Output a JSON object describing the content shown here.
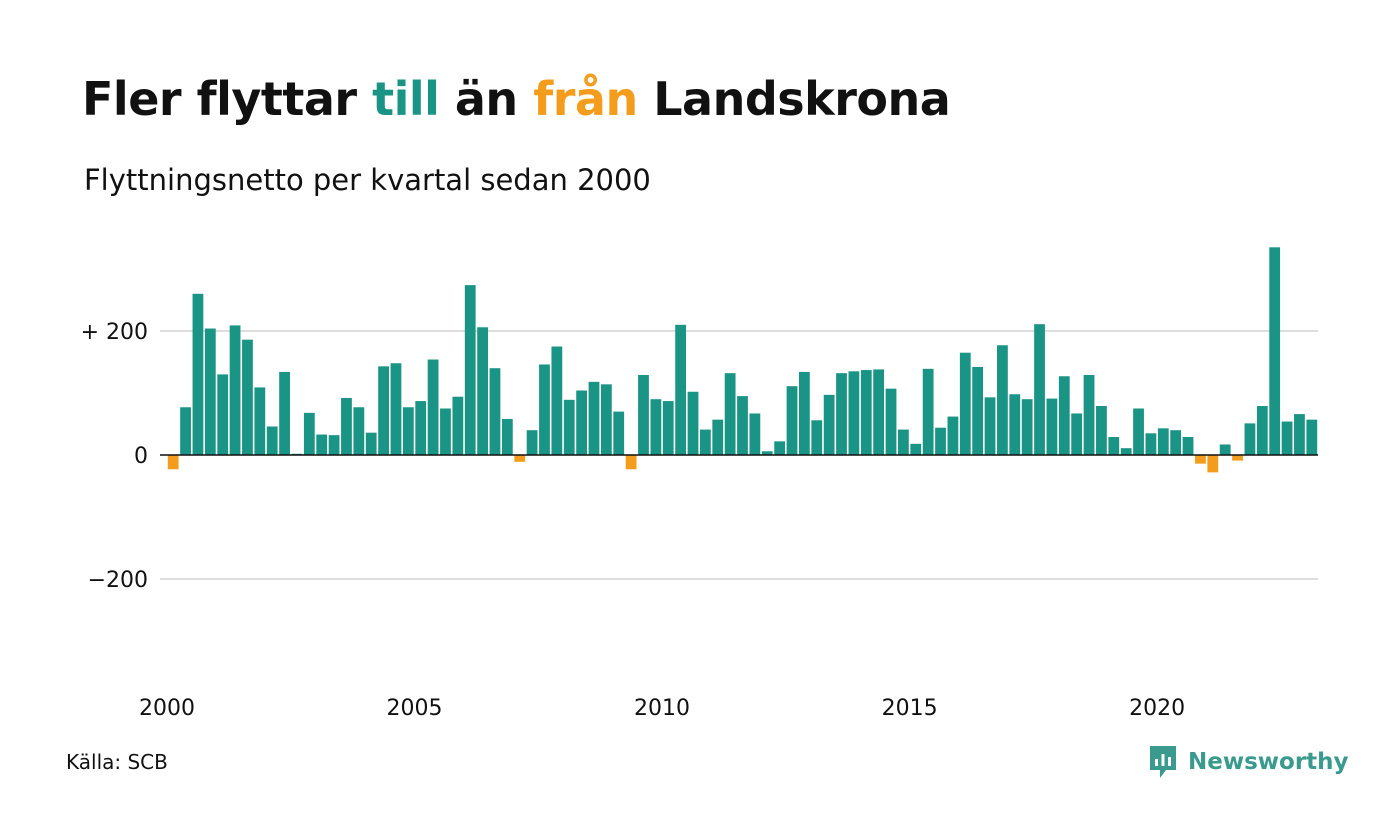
{
  "title": {
    "part1": "Fler flyttar ",
    "part2": "till",
    "part3": " än ",
    "part4": "från",
    "part5": " Landskrona"
  },
  "subtitle": "Flyttningsnetto per kvartal sedan 2000",
  "source": "Källa: SCB",
  "brand": "Newsworthy",
  "colors": {
    "positive": "#1a9485",
    "negative": "#f49c1c",
    "grid": "#dddddd",
    "zero_line": "#111111"
  },
  "chart_data": {
    "type": "bar",
    "title": "Fler flyttar till än från Landskrona",
    "subtitle": "Flyttningsnetto per kvartal sedan 2000",
    "x_start": 2000,
    "periods_per_year": 4,
    "xlabel": "",
    "ylabel": "",
    "ylim": [
      -380,
      380
    ],
    "y_ticks": [
      {
        "value": 200,
        "label": "+ 200"
      },
      {
        "value": 0,
        "label": "0"
      },
      {
        "value": -200,
        "label": "−200"
      }
    ],
    "x_ticks": [
      "2000",
      "2005",
      "2010",
      "2015",
      "2020"
    ],
    "grid": true,
    "values": [
      -23,
      77,
      260,
      204,
      130,
      209,
      186,
      109,
      46,
      134,
      2,
      68,
      33,
      32,
      92,
      77,
      36,
      143,
      148,
      77,
      87,
      154,
      75,
      94,
      274,
      206,
      140,
      58,
      -11,
      40,
      146,
      175,
      89,
      104,
      118,
      114,
      70,
      -23,
      129,
      90,
      87,
      210,
      102,
      41,
      57,
      132,
      95,
      67,
      6,
      22,
      111,
      134,
      56,
      97,
      132,
      135,
      137,
      138,
      107,
      41,
      18,
      139,
      44,
      62,
      165,
      142,
      93,
      177,
      98,
      90,
      211,
      91,
      127,
      67,
      129,
      79,
      29,
      11,
      75,
      35,
      43,
      40,
      29,
      -14,
      -28,
      17,
      -9,
      51,
      79,
      335,
      54,
      66,
      57
    ]
  }
}
